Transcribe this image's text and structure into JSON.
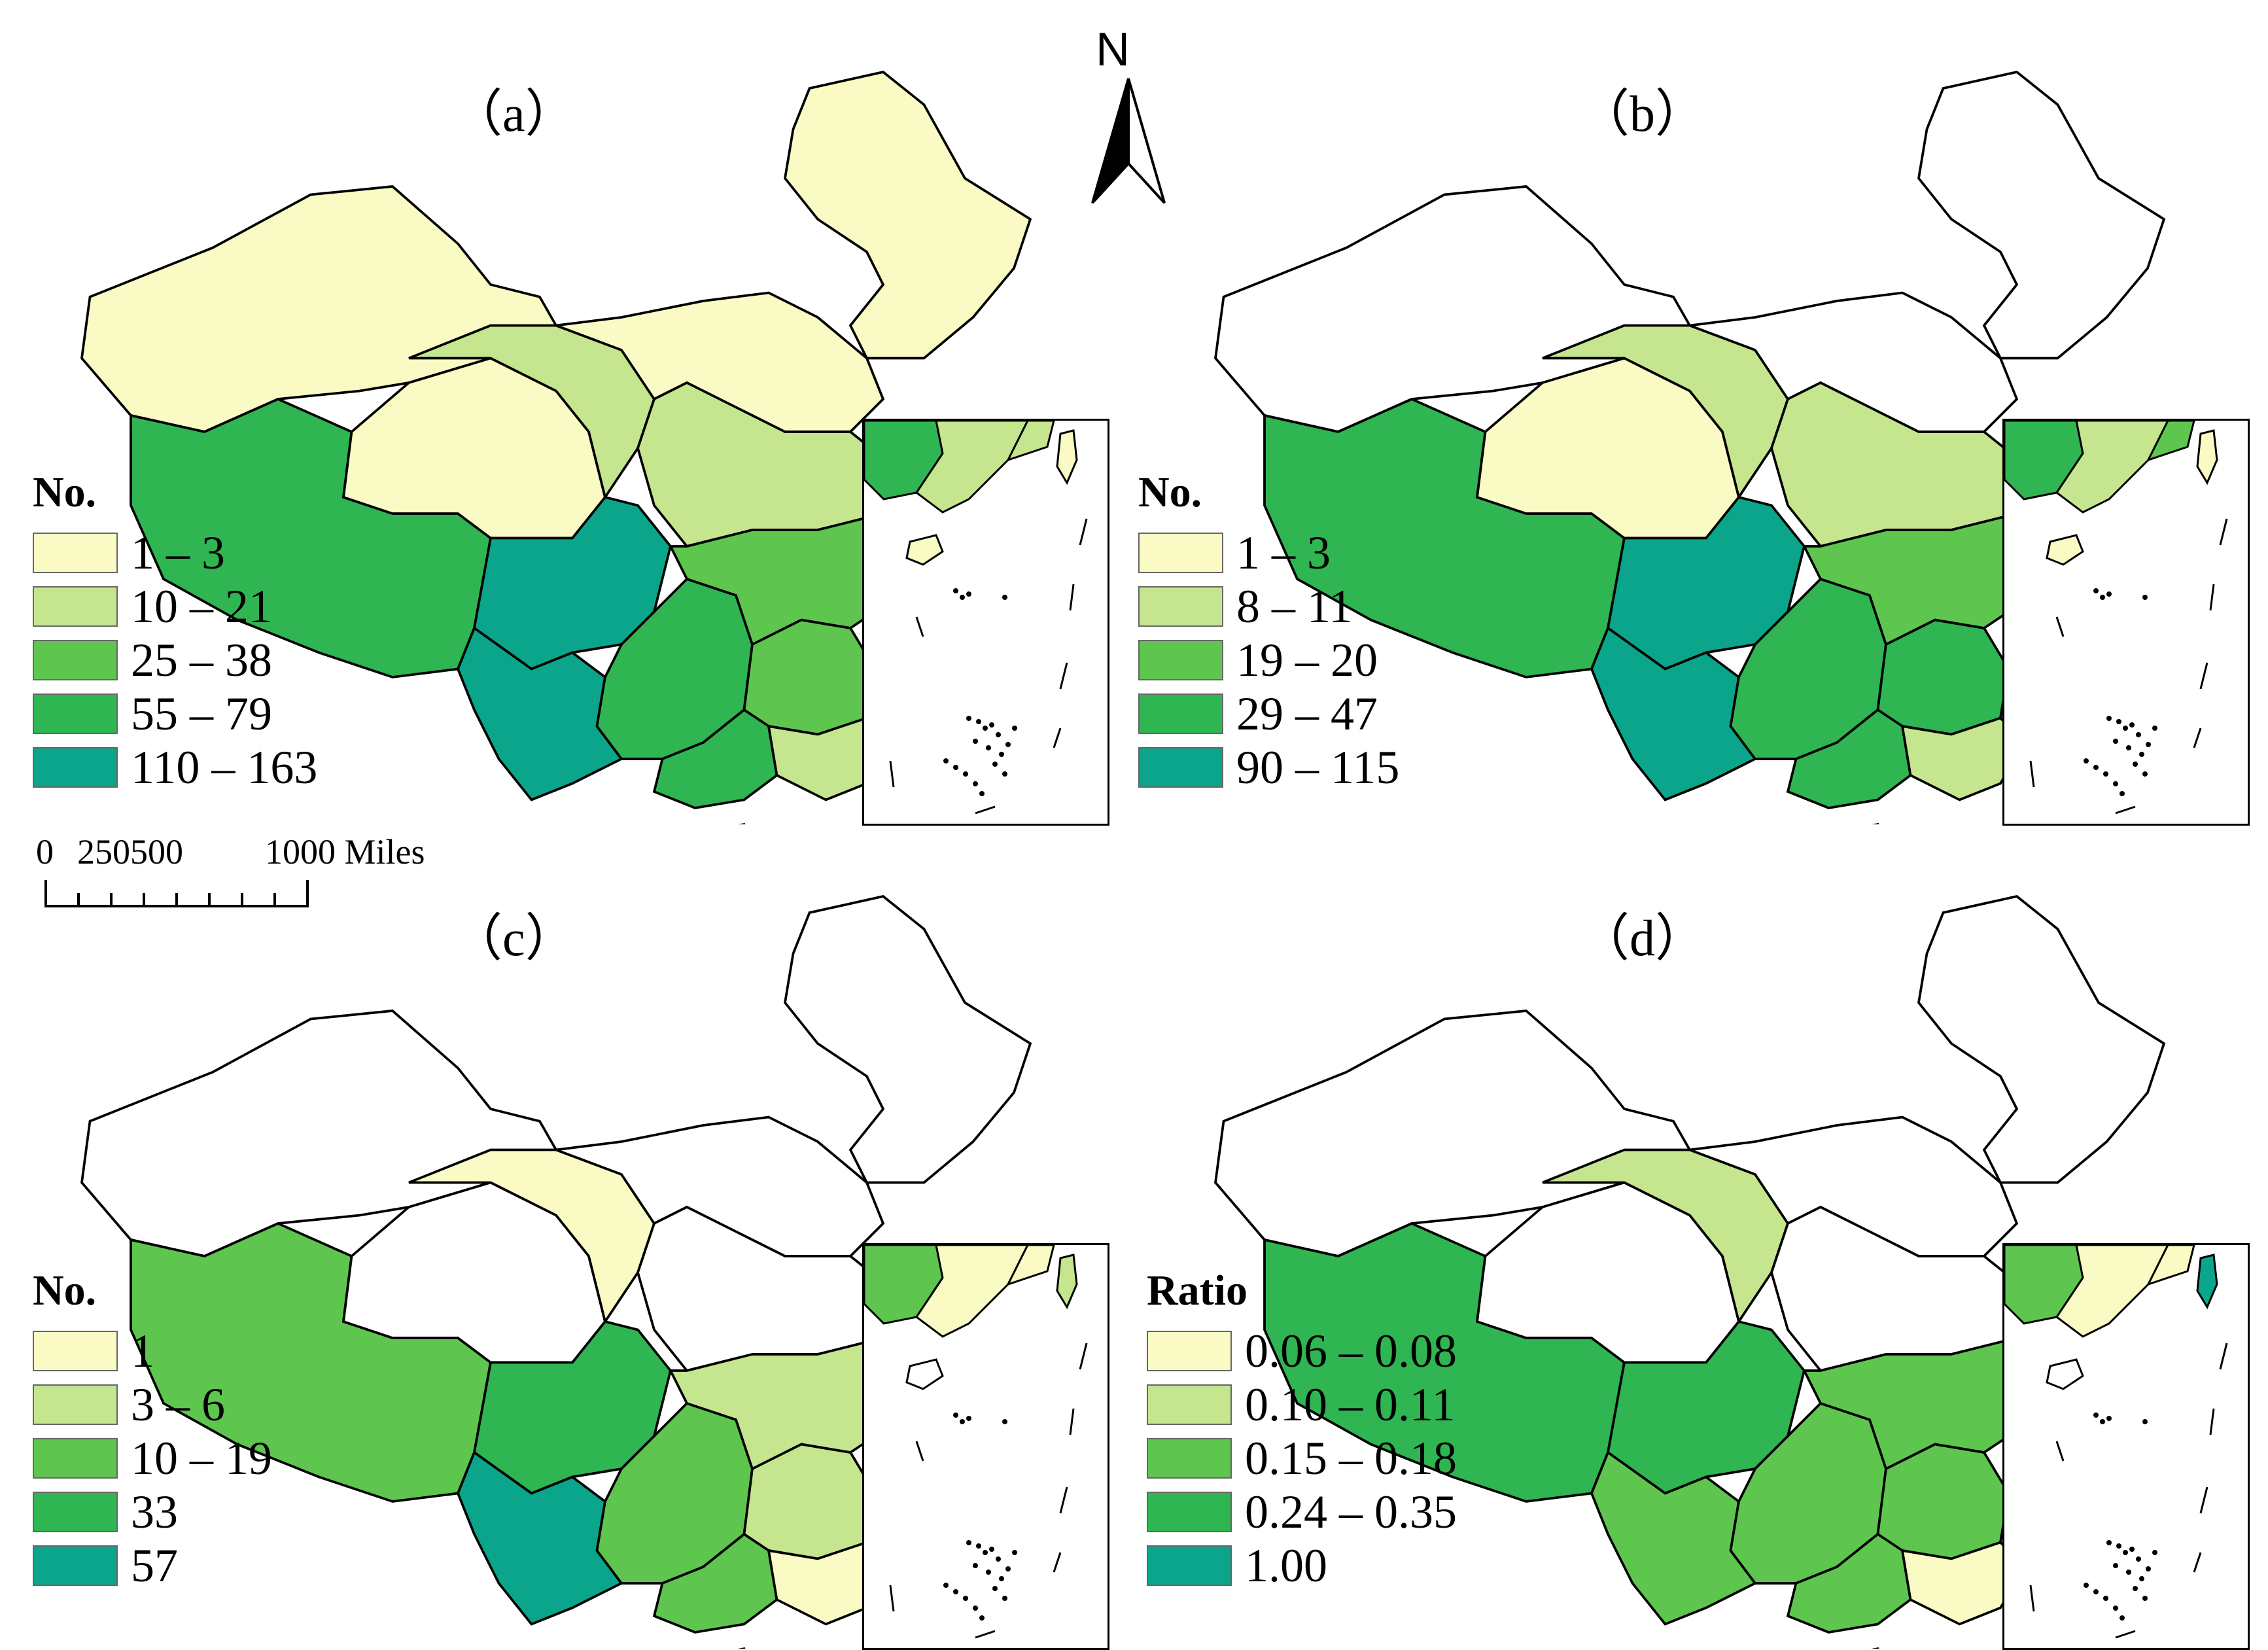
{
  "figure": {
    "north_label": "N",
    "scale": {
      "labels": [
        "0",
        "250500",
        "1000 Miles"
      ]
    }
  },
  "colors": {
    "c1": "#fafac4",
    "c2": "#c5e58f",
    "c3": "#5ec64f",
    "c4": "#2fb552",
    "c5": "#0aa58a",
    "none": "#ffffff",
    "border": "#000000"
  },
  "panels": [
    {
      "id": "a",
      "label": "（a）",
      "legend_title": "No.",
      "legend": [
        {
          "label": "1 – 3",
          "color": "#fafac4"
        },
        {
          "label": "10 – 21",
          "color": "#c5e58f"
        },
        {
          "label": "25 – 38",
          "color": "#5ec64f"
        },
        {
          "label": "55 – 79",
          "color": "#2fb552"
        },
        {
          "label": "110 – 163",
          "color": "#0aa58a"
        }
      ]
    },
    {
      "id": "b",
      "label": "（b）",
      "legend_title": "No.",
      "legend": [
        {
          "label": "1 – 3",
          "color": "#fafac4"
        },
        {
          "label": "8 – 11",
          "color": "#c5e58f"
        },
        {
          "label": "19 – 20",
          "color": "#5ec64f"
        },
        {
          "label": "29 – 47",
          "color": "#2fb552"
        },
        {
          "label": "90 – 115",
          "color": "#0aa58a"
        }
      ]
    },
    {
      "id": "c",
      "label": "（c）",
      "legend_title": "No.",
      "legend": [
        {
          "label": "1",
          "color": "#fafac4"
        },
        {
          "label": "3 – 6",
          "color": "#c5e58f"
        },
        {
          "label": "10 – 19",
          "color": "#5ec64f"
        },
        {
          "label": "33",
          "color": "#2fb552"
        },
        {
          "label": "57",
          "color": "#0aa58a"
        }
      ]
    },
    {
      "id": "d",
      "label": "（d）",
      "legend_title": "Ratio",
      "legend": [
        {
          "label": "0.06 – 0.08",
          "color": "#fafac4"
        },
        {
          "label": "0.10 – 0.11",
          "color": "#c5e58f"
        },
        {
          "label": "0.15 – 0.18",
          "color": "#5ec64f"
        },
        {
          "label": "0.24 – 0.35",
          "color": "#2fb552"
        },
        {
          "label": "1.00",
          "color": "#0aa58a"
        }
      ]
    }
  ],
  "region_classes": {
    "a": {
      "northwest": 1,
      "tibet": 4,
      "qinghai": 1,
      "gansu": 2,
      "northeast": 1,
      "north": 1,
      "central_north": 2,
      "sichuan": 5,
      "yunnan": 5,
      "chongqing_guizhou": 4,
      "hunan_jiangxi": 3,
      "hubei_anhui": 3,
      "guangxi": 4,
      "guangdong": 2,
      "fujian_zhejiang": 2,
      "jiangsu": 2,
      "taiwan": 1,
      "hainan": 1
    },
    "b": {
      "northwest": 0,
      "tibet": 4,
      "qinghai": 1,
      "gansu": 2,
      "northeast": 0,
      "north": 0,
      "central_north": 2,
      "sichuan": 5,
      "yunnan": 5,
      "chongqing_guizhou": 4,
      "hunan_jiangxi": 4,
      "hubei_anhui": 3,
      "guangxi": 4,
      "guangdong": 2,
      "fujian_zhejiang": 3,
      "jiangsu": 1,
      "taiwan": 1,
      "hainan": 1
    },
    "c": {
      "northwest": 0,
      "tibet": 3,
      "qinghai": 0,
      "gansu": 1,
      "northeast": 0,
      "north": 0,
      "central_north": 0,
      "sichuan": 4,
      "yunnan": 5,
      "chongqing_guizhou": 3,
      "hunan_jiangxi": 2,
      "hubei_anhui": 2,
      "guangxi": 3,
      "guangdong": 1,
      "fujian_zhejiang": 1,
      "jiangsu": 2,
      "taiwan": 2,
      "hainan": 0
    },
    "d": {
      "northwest": 0,
      "tibet": 4,
      "qinghai": 0,
      "gansu": 2,
      "northeast": 0,
      "north": 0,
      "central_north": 0,
      "sichuan": 4,
      "yunnan": 3,
      "chongqing_guizhou": 3,
      "hunan_jiangxi": 3,
      "hubei_anhui": 3,
      "guangxi": 3,
      "guangdong": 1,
      "fujian_zhejiang": 1,
      "jiangsu": 4,
      "taiwan": 5,
      "hainan": 0
    }
  }
}
